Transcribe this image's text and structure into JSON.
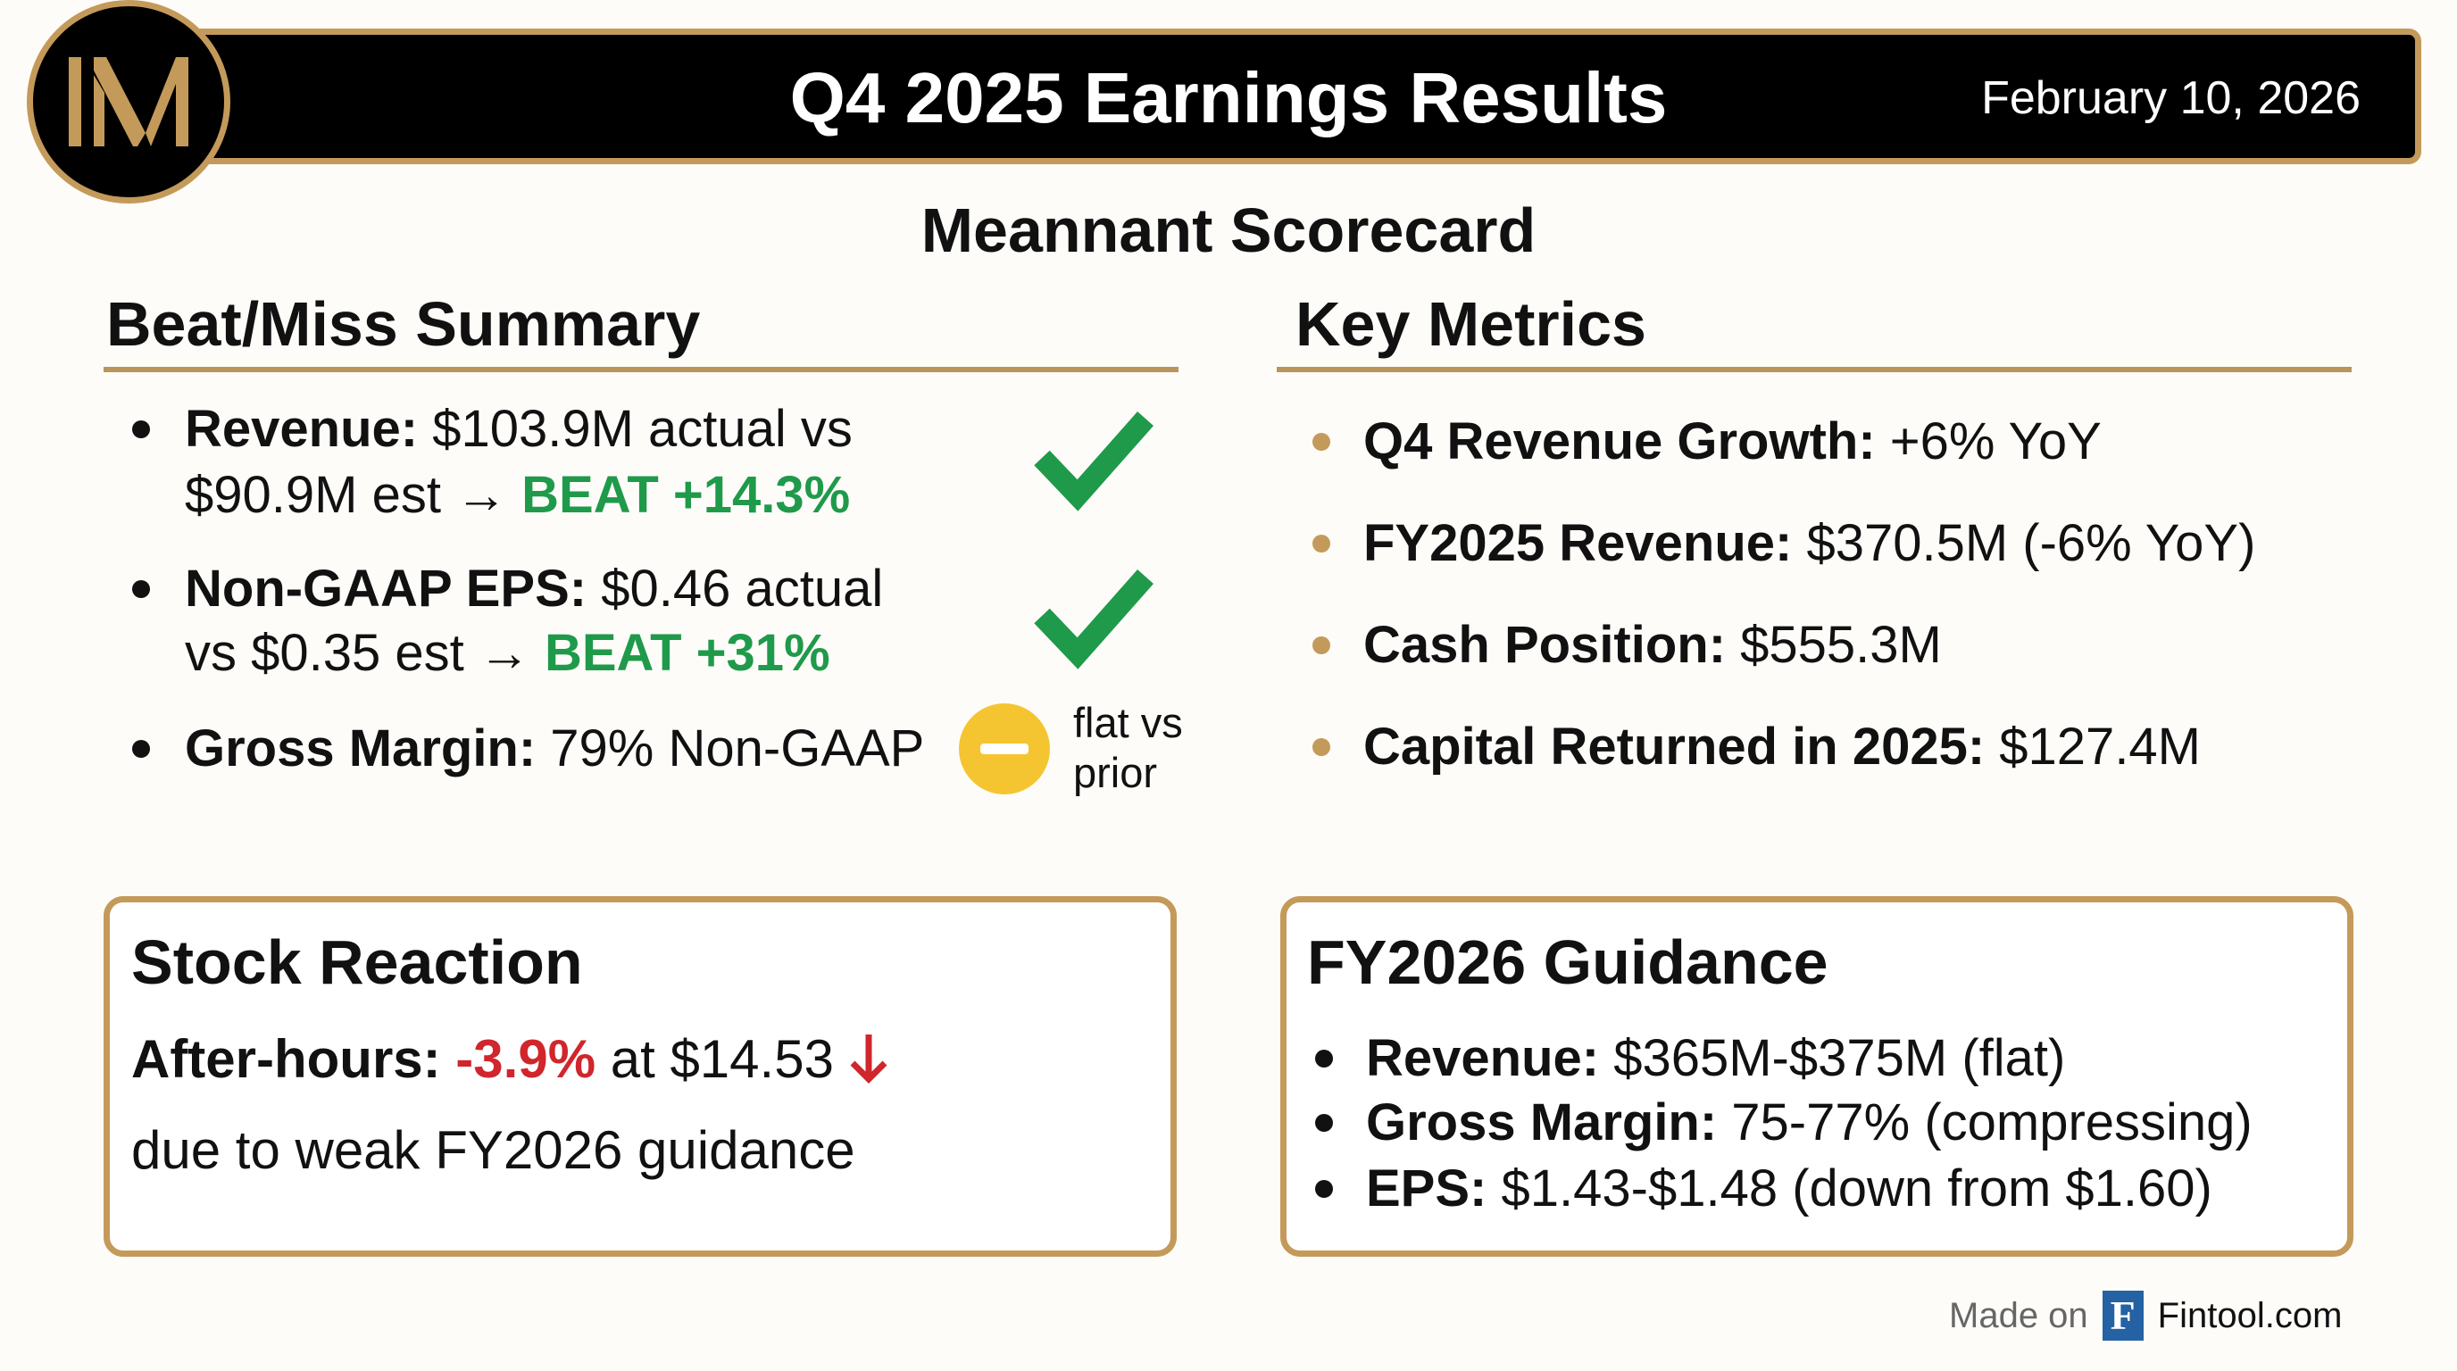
{
  "header": {
    "logo_text": "IM",
    "title": "Q4 2025 Earnings Results",
    "date": "February 10, 2026"
  },
  "subtitle": "Meannant Scorecard",
  "beat_miss": {
    "heading": "Beat/Miss Summary",
    "items": [
      {
        "label": "Revenue:",
        "line1": " $103.9M actual vs",
        "line2": "$90.9M est → ",
        "result": "BEAT +14.3%",
        "status": "beat"
      },
      {
        "label": "Non-GAAP EPS:",
        "line1": " $0.46 actual",
        "line2": "vs $0.35 est → ",
        "result": "BEAT +31%",
        "status": "beat"
      },
      {
        "label": "Gross Margin:",
        "line1": " 79% Non-GAAP",
        "note1": "flat vs",
        "note2": "prior",
        "status": "flat"
      }
    ]
  },
  "key_metrics": {
    "heading": "Key Metrics",
    "items": [
      {
        "label": "Q4 Revenue Growth:",
        "value": " +6% YoY"
      },
      {
        "label": "FY2025 Revenue:",
        "value": " $370.5M (-6% YoY)"
      },
      {
        "label": "Cash Position:",
        "value": " $555.3M"
      },
      {
        "label": "Capital Returned in 2025:",
        "value": " $127.4M"
      }
    ]
  },
  "stock": {
    "heading": "Stock Reaction",
    "label": "After-hours:",
    "change": " -3.9%",
    "price": " at $14.53",
    "reason": "due to weak FY2026 guidance"
  },
  "guidance": {
    "heading": "FY2026 Guidance",
    "items": [
      {
        "label": "Revenue:",
        "value": " $365M-$375M (flat)"
      },
      {
        "label": "Gross Margin:",
        "value": " 75-77% (compressing)"
      },
      {
        "label": "EPS:",
        "value": " $1.43-$1.48 (down from $1.60)"
      }
    ]
  },
  "footer": {
    "made_on": "Made on",
    "brand_letter": "F",
    "brand": "Fintool.com"
  },
  "colors": {
    "gold": "#c49a5a",
    "beat": "#1f9a4a",
    "miss": "#d0262c",
    "flat": "#f5c531",
    "brand": "#2462a3"
  }
}
